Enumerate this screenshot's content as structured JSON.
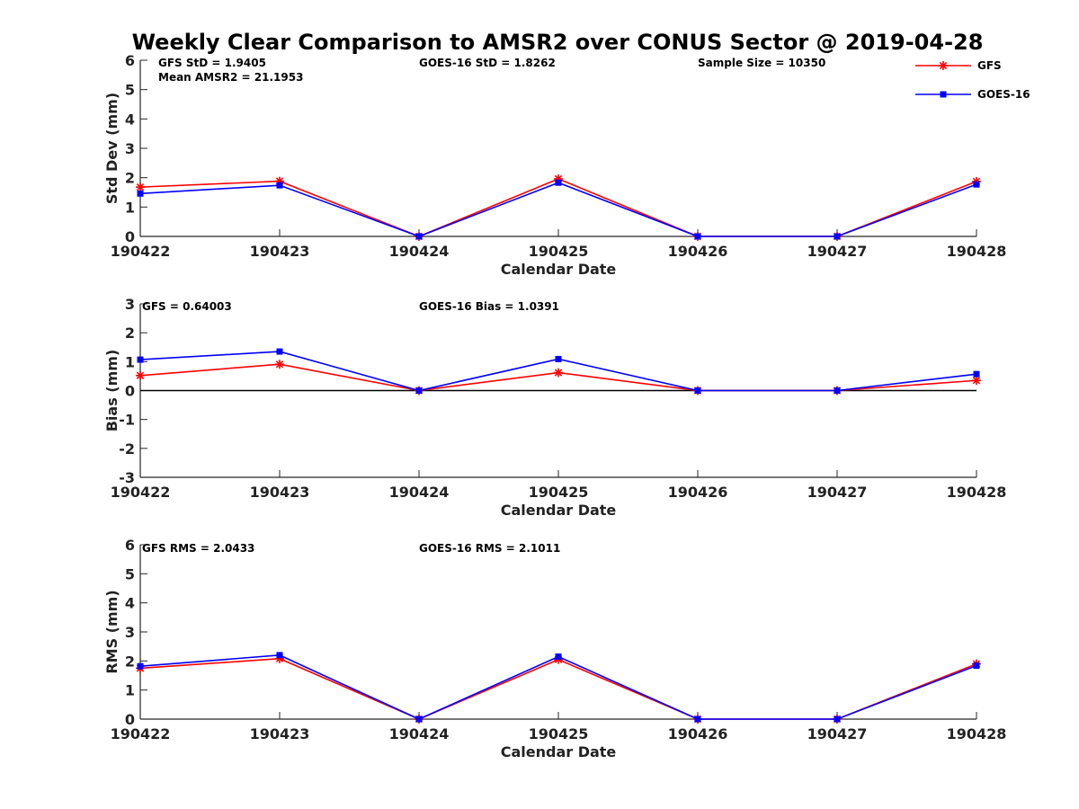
{
  "title": "Weekly Clear Comparison to AMSR2 over CONUS Sector @ 2019-04-28",
  "legend": [
    {
      "name": "GFS",
      "color": "#ff0000",
      "marker": "asterisk"
    },
    {
      "name": "GOES-16",
      "color": "#0000ff",
      "marker": "square"
    }
  ],
  "chart_data": [
    {
      "type": "line",
      "ylabel": "Std Dev (mm)",
      "xlabel": "Calendar Date",
      "categories": [
        "190422",
        "190423",
        "190424",
        "190425",
        "190426",
        "190427",
        "190428"
      ],
      "ylim": [
        0,
        6
      ],
      "yticks": [
        "0",
        "1",
        "2",
        "3",
        "4",
        "5",
        "6"
      ],
      "zero_line": false,
      "annotations": [
        "GFS StD = 1.9405",
        "Mean AMSR2 = 21.1953",
        "GOES-16 StD = 1.8262",
        "Sample Size = 10350"
      ],
      "series": [
        {
          "name": "GFS",
          "values": [
            1.68,
            1.88,
            0.0,
            1.96,
            0.0,
            0.0,
            1.87
          ]
        },
        {
          "name": "GOES-16",
          "values": [
            1.46,
            1.74,
            0.0,
            1.83,
            0.0,
            0.0,
            1.77
          ]
        }
      ]
    },
    {
      "type": "line",
      "ylabel": "Bias (mm)",
      "xlabel": "Calendar Date",
      "categories": [
        "190422",
        "190423",
        "190424",
        "190425",
        "190426",
        "190427",
        "190428"
      ],
      "ylim": [
        -3,
        3
      ],
      "yticks": [
        "-3",
        "-2",
        "-1",
        "0",
        "1",
        "2",
        "3"
      ],
      "zero_line": true,
      "annotations": [
        "GFS = 0.64003",
        "GOES-16 Bias  = 1.0391"
      ],
      "series": [
        {
          "name": "GFS",
          "values": [
            0.52,
            0.91,
            0.0,
            0.62,
            0.0,
            0.0,
            0.35
          ]
        },
        {
          "name": "GOES-16",
          "values": [
            1.07,
            1.35,
            0.0,
            1.09,
            0.0,
            0.0,
            0.57
          ]
        }
      ]
    },
    {
      "type": "line",
      "ylabel": "RMS (mm)",
      "xlabel": "Calendar Date",
      "categories": [
        "190422",
        "190423",
        "190424",
        "190425",
        "190426",
        "190427",
        "190428"
      ],
      "ylim": [
        0,
        6
      ],
      "yticks": [
        "0",
        "1",
        "2",
        "3",
        "4",
        "5",
        "6"
      ],
      "zero_line": false,
      "annotations": [
        "GFS RMS = 2.0433",
        "GOES-16 RMS = 2.1011"
      ],
      "series": [
        {
          "name": "GFS",
          "values": [
            1.75,
            2.08,
            0.0,
            2.05,
            0.0,
            0.0,
            1.9
          ]
        },
        {
          "name": "GOES-16",
          "values": [
            1.82,
            2.2,
            0.0,
            2.15,
            0.0,
            0.0,
            1.84
          ]
        }
      ]
    }
  ]
}
